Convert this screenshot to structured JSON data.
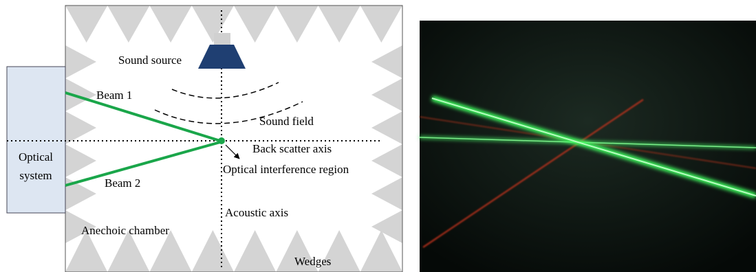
{
  "labels": {
    "sound_source": "Sound source",
    "beam_1": "Beam 1",
    "beam_2": "Beam 2",
    "sound_field": "Sound field",
    "back_scatter_axis": "Back scatter axis",
    "optical_interference_region": "Optical interference region",
    "acoustic_axis": "Acoustic axis",
    "anechoic_chamber": "Anechoic chamber",
    "wedges": "Wedges",
    "optical_system": [
      "Optical",
      "system"
    ]
  }
}
